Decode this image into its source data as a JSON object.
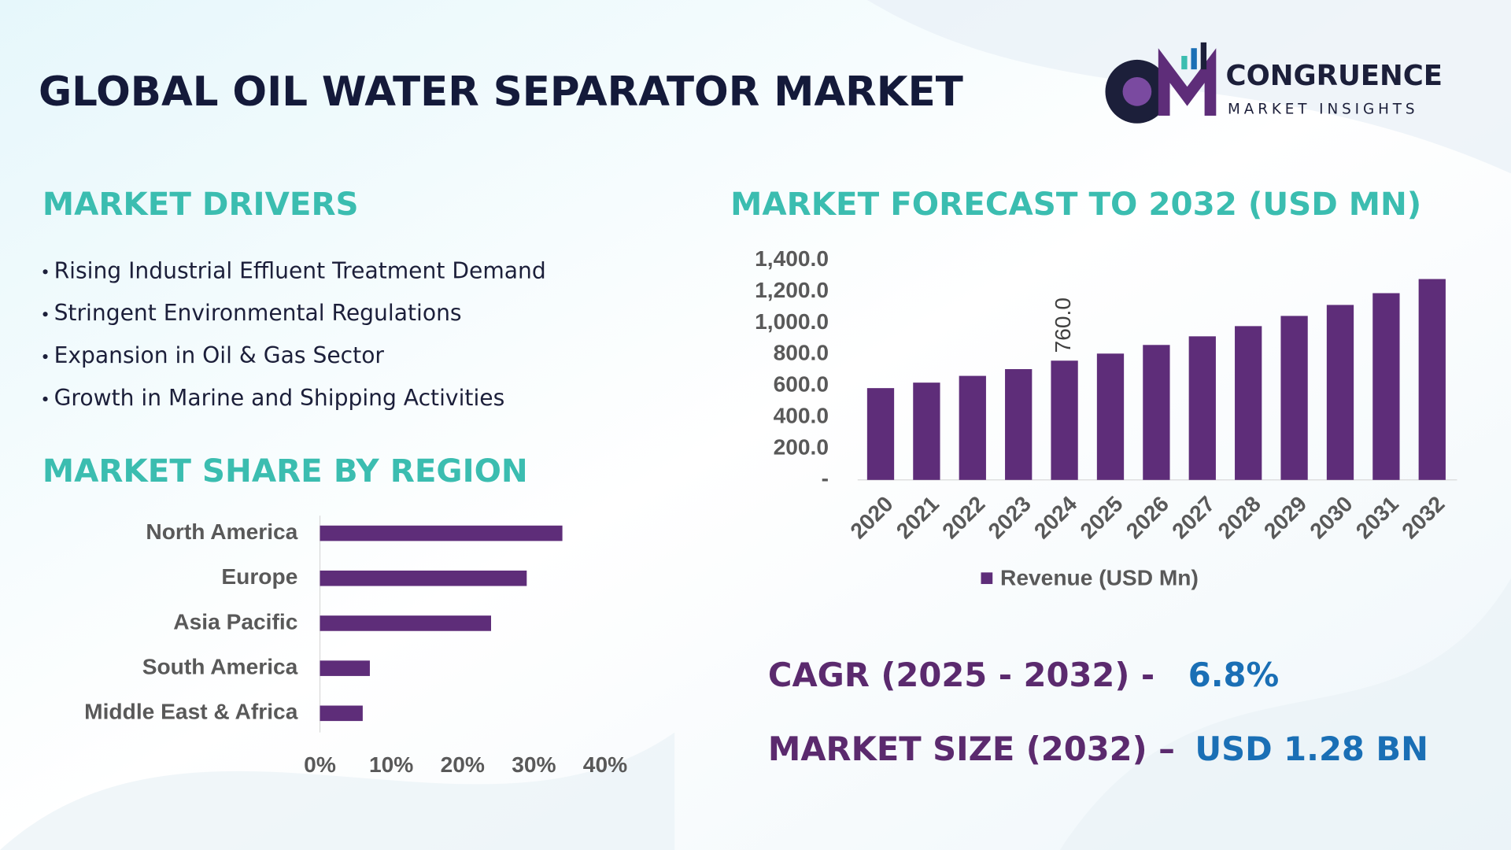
{
  "title": "GLOBAL OIL WATER SEPARATOR MARKET",
  "logo": {
    "name": "CONGRUENCE",
    "tagline": "MARKET INSIGHTS"
  },
  "drivers": {
    "heading": "MARKET DRIVERS",
    "items": [
      "Rising Industrial Effluent Treatment Demand",
      "Stringent Environmental Regulations",
      "Expansion in Oil & Gas Sector",
      "Growth in Marine and Shipping Activities"
    ]
  },
  "chart_data": [
    {
      "type": "hbar",
      "title": "MARKET SHARE BY REGION",
      "categories": [
        "North America",
        "Europe",
        "Asia Pacific",
        "South America",
        "Middle East & Africa"
      ],
      "values": [
        34,
        29,
        24,
        7,
        6
      ],
      "color": "#5e2d79",
      "xlim": [
        0,
        40
      ],
      "xticks": [
        {
          "value": 0,
          "label": "0%"
        },
        {
          "value": 10,
          "label": "10%"
        },
        {
          "value": 20,
          "label": "20%"
        },
        {
          "value": 30,
          "label": "30%"
        },
        {
          "value": 40,
          "label": "40%"
        }
      ],
      "grid": false
    },
    {
      "type": "bar",
      "title": "MARKET FORECAST TO 2032 (USD MN)",
      "categories": [
        "2020",
        "2021",
        "2022",
        "2023",
        "2024",
        "2025",
        "2026",
        "2027",
        "2028",
        "2029",
        "2030",
        "2031",
        "2032"
      ],
      "series": [
        {
          "name": "Revenue (USD Mn)",
          "color": "#5e2d79",
          "values": [
            585,
            620,
            663,
            706,
            760,
            805,
            860,
            915,
            980,
            1045,
            1115,
            1190,
            1280
          ],
          "value_labels": [
            null,
            null,
            null,
            null,
            "760.0",
            null,
            null,
            null,
            null,
            null,
            null,
            null,
            null
          ]
        }
      ],
      "ylim": [
        0,
        1400
      ],
      "yticks": [
        {
          "value": 0,
          "label": "-"
        },
        {
          "value": 200,
          "label": "200.0"
        },
        {
          "value": 400,
          "label": "400.0"
        },
        {
          "value": 600,
          "label": "600.0"
        },
        {
          "value": 800,
          "label": "800.0"
        },
        {
          "value": 1000,
          "label": "1,000.0"
        },
        {
          "value": 1200,
          "label": "1,200.0"
        },
        {
          "value": 1400,
          "label": "1,400.0"
        }
      ],
      "grid": false,
      "legend": "bottom"
    }
  ],
  "stats": [
    {
      "label": "CAGR (2025 - 2032) -",
      "value": "6.8%"
    },
    {
      "label": "MARKET SIZE (2032) –",
      "value": "USD 1.28 BN"
    }
  ]
}
